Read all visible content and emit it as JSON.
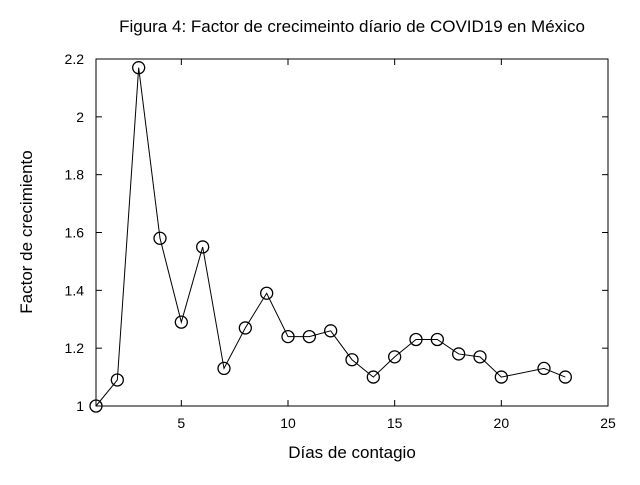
{
  "chart_data": {
    "type": "line",
    "title": "Figura 4: Factor de crecimeinto díario de COVID19 en México",
    "xlabel": "Días de contagio",
    "ylabel": "Factor de crecimiento",
    "xlim": [
      1,
      25
    ],
    "ylim": [
      1,
      2.2
    ],
    "xticks": [
      5,
      10,
      15,
      20,
      25
    ],
    "yticks": [
      1,
      1.2,
      1.4,
      1.6,
      1.8,
      2,
      2.2
    ],
    "xtick_labels": [
      "5",
      "10",
      "15",
      "20",
      "25"
    ],
    "ytick_labels": [
      "1",
      "1.2",
      "1.4",
      "1.6",
      "1.8",
      "2",
      "2.2"
    ],
    "grid": false,
    "marker": "open-circle",
    "line_color": "#000000",
    "x": [
      1,
      2,
      3,
      4,
      5,
      6,
      7,
      8,
      9,
      10,
      11,
      12,
      13,
      14,
      15,
      16,
      17,
      18,
      19,
      20,
      22,
      23
    ],
    "y": [
      1.0,
      1.09,
      2.17,
      1.58,
      1.29,
      1.55,
      1.13,
      1.27,
      1.39,
      1.24,
      1.24,
      1.26,
      1.16,
      1.1,
      1.17,
      1.23,
      1.23,
      1.18,
      1.17,
      1.1,
      1.13,
      1.1
    ]
  }
}
